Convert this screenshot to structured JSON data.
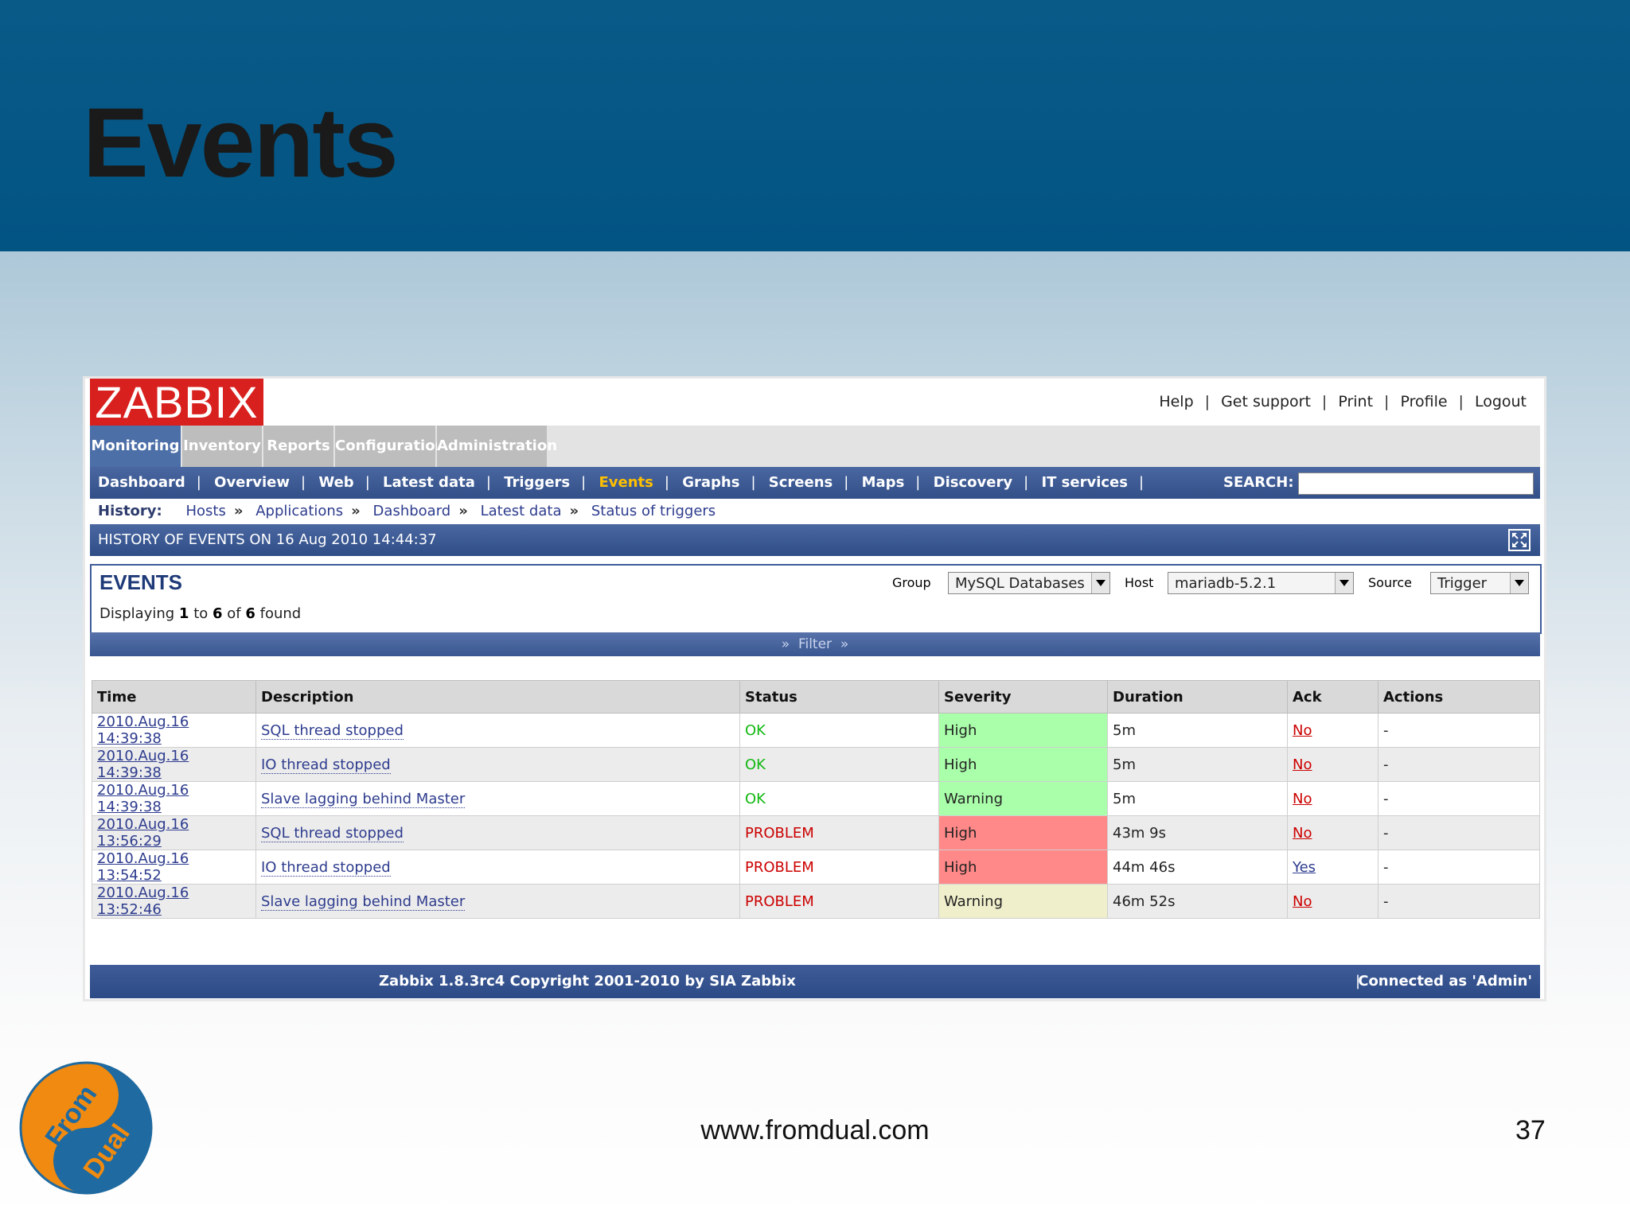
{
  "slide": {
    "title": "Events",
    "url": "www.fromdual.com",
    "page_number": "37",
    "logo_text": [
      "From",
      "Dual"
    ]
  },
  "app": {
    "logo": "ZABBIX",
    "top_links": [
      "Help",
      "Get support",
      "Print",
      "Profile",
      "Logout"
    ],
    "menu_tabs": [
      "Monitoring",
      "Inventory",
      "Reports",
      "Configuration",
      "Administration"
    ],
    "active_menu": "Monitoring",
    "sub_nav": [
      "Dashboard",
      "Overview",
      "Web",
      "Latest data",
      "Triggers",
      "Events",
      "Graphs",
      "Screens",
      "Maps",
      "Discovery",
      "IT services"
    ],
    "active_sub_nav": "Events",
    "search_label": "SEARCH:",
    "search_value": "",
    "history_label": "History:",
    "history": [
      "Hosts",
      "Applications",
      "Dashboard",
      "Latest data",
      "Status of triggers"
    ],
    "section_title": "HISTORY OF EVENTS ON 16 Aug 2010 14:44:37",
    "events": {
      "title": "EVENTS",
      "count_prefix": "Displaying",
      "count_from": "1",
      "count_to_word": "to",
      "count_to": "6",
      "count_of_word": "of",
      "count_total": "6",
      "count_suffix": "found",
      "group_label": "Group",
      "group_value": "MySQL Databases",
      "host_label": "Host",
      "host_value": "mariadb-5.2.1",
      "source_label": "Source",
      "source_value": "Trigger"
    },
    "filter_label": "Filter",
    "table": {
      "headers": [
        "Time",
        "Description",
        "Status",
        "Severity",
        "Duration",
        "Ack",
        "Actions"
      ],
      "rows": [
        {
          "time": "2010.Aug.16 14:39:38",
          "description": "SQL thread stopped",
          "status": "OK",
          "severity": "High",
          "duration": "5m",
          "ack": "No",
          "actions": "-"
        },
        {
          "time": "2010.Aug.16 14:39:38",
          "description": "IO thread stopped",
          "status": "OK",
          "severity": "High",
          "duration": "5m",
          "ack": "No",
          "actions": "-"
        },
        {
          "time": "2010.Aug.16 14:39:38",
          "description": "Slave lagging behind Master",
          "status": "OK",
          "severity": "Warning",
          "duration": "5m",
          "ack": "No",
          "actions": "-"
        },
        {
          "time": "2010.Aug.16 13:56:29",
          "description": "SQL thread stopped",
          "status": "PROBLEM",
          "severity": "High",
          "duration": "43m 9s",
          "ack": "No",
          "actions": "-"
        },
        {
          "time": "2010.Aug.16 13:54:52",
          "description": "IO thread stopped",
          "status": "PROBLEM",
          "severity": "High",
          "duration": "44m 46s",
          "ack": "Yes",
          "actions": "-"
        },
        {
          "time": "2010.Aug.16 13:52:46",
          "description": "Slave lagging behind Master",
          "status": "PROBLEM",
          "severity": "Warning",
          "duration": "46m 52s",
          "ack": "No",
          "actions": "-"
        }
      ]
    },
    "footer": {
      "copyright": "Zabbix 1.8.3rc4 Copyright 2001-2010 by SIA Zabbix",
      "connected": "Connected as 'Admin'"
    },
    "colors": {
      "accent": "#3f5c99",
      "logo_red": "#d8201e",
      "ok_bg": "#aaffaa",
      "high_bg": "#ff8888",
      "warning_bg": "#efefcc",
      "active_nav": "#ffc000"
    }
  }
}
